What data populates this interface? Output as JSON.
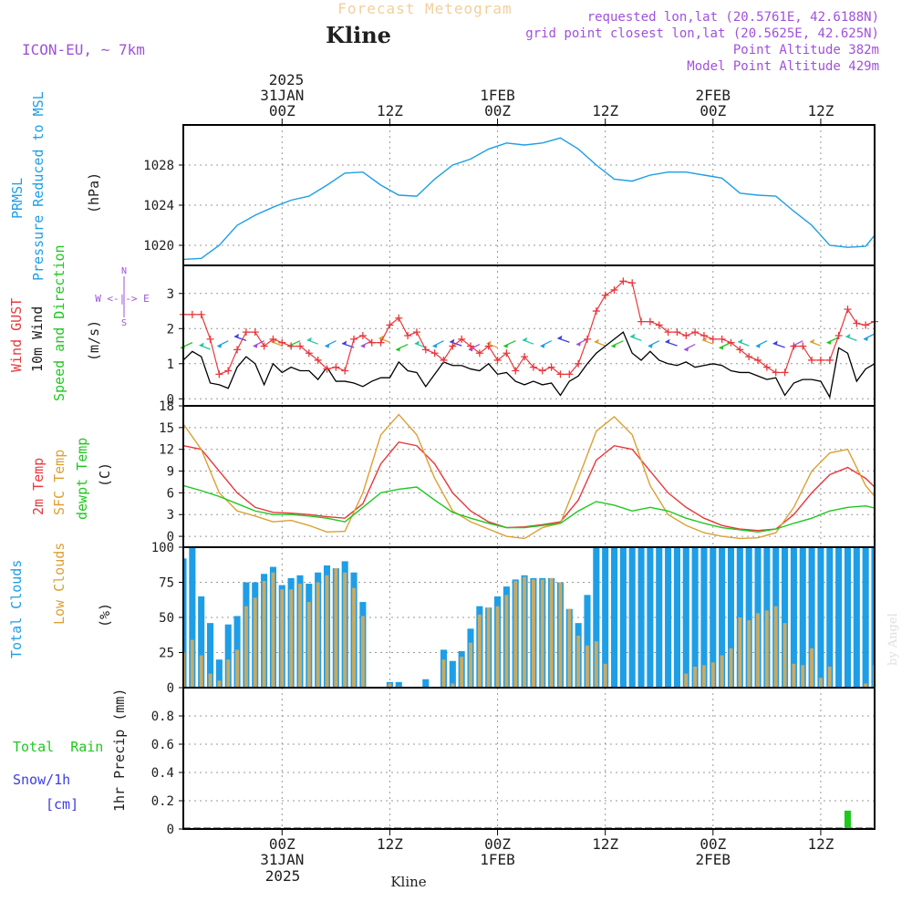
{
  "header": {
    "super_title": "Forecast Meteogram",
    "location": "Kline",
    "model": "ICON-EU, ~ 7km",
    "requested": "requested lon,lat (20.5761E, 42.6188N)",
    "grid_point": "grid point closest lon,lat (20.5625E, 42.625N)",
    "point_altitude": "Point Altitude 382m",
    "model_altitude": "Model Point Altitude 429m"
  },
  "footer": {
    "location": "Kline",
    "credit": "by Angel"
  },
  "time_axis": {
    "top_year": "2025",
    "top_labels": [
      {
        "day": "31JAN",
        "hour": "00Z",
        "h": 0
      },
      {
        "day": "",
        "hour": "12Z",
        "h": 12
      },
      {
        "day": "1FEB",
        "hour": "00Z",
        "h": 24
      },
      {
        "day": "",
        "hour": "12Z",
        "h": 36
      },
      {
        "day": "2FEB",
        "hour": "00Z",
        "h": 48
      },
      {
        "day": "",
        "hour": "12Z",
        "h": 60
      }
    ],
    "bottom_year": "2025",
    "bottom_labels": [
      {
        "hour": "00Z",
        "day": "31JAN",
        "h": 0
      },
      {
        "hour": "12Z",
        "day": "",
        "h": 12
      },
      {
        "hour": "00Z",
        "day": "1FEB",
        "h": 24
      },
      {
        "hour": "12Z",
        "day": "",
        "h": 36
      },
      {
        "hour": "00Z",
        "day": "2FEB",
        "h": 48
      },
      {
        "hour": "12Z",
        "day": "",
        "h": 60
      }
    ],
    "start_h": -11,
    "end_h": 66
  },
  "panel_labels": {
    "prmsl": {
      "line1": "PRMSL",
      "line2": "Pressure Reduced to MSL",
      "unit": "(hPa)"
    },
    "wind": {
      "gust": "Wind GUST",
      "wind10": "10m Wind",
      "speed_dir": "Speed and Direction",
      "unit": "(m/s)",
      "compass_n": "N",
      "compass_s": "S",
      "compass_we": "W <-|-> E"
    },
    "temp": {
      "t2m": "2m Temp",
      "sfc": "SFC Temp",
      "dewpt": "dewpt Temp",
      "unit": "(C)"
    },
    "clouds": {
      "total": "Total Clouds",
      "low": "Low Clouds",
      "unit": "(%)"
    },
    "precip": {
      "total_rain": "Total  Rain",
      "snow": "Snow/1h",
      "snow_unit": "[cm]",
      "axis": "1hr Precip (mm)"
    }
  },
  "colors": {
    "prmsl": "#1e9ee6",
    "gust": "#e8383c",
    "wind10": "#000000",
    "t2m": "#e8383c",
    "sfc": "#dca032",
    "dewpt": "#1ec81e",
    "total_clouds": "#1e9ee6",
    "low_clouds": "#c8aa64",
    "rain": "#1ec81e",
    "snow": "#3c3ce6",
    "purple": "#a050dc"
  },
  "chart_data": [
    {
      "type": "line",
      "name": "prmsl",
      "ylim": [
        1018,
        1032
      ],
      "yticks": [
        1020,
        1024,
        1028
      ],
      "x": [
        -11,
        -9,
        -7,
        -5,
        -3,
        -1,
        1,
        3,
        5,
        7,
        9,
        11,
        13,
        15,
        17,
        19,
        21,
        23,
        25,
        27,
        29,
        31,
        33,
        35,
        37,
        39,
        41,
        43,
        45,
        47,
        49,
        51,
        53,
        55,
        57,
        59,
        61,
        63,
        65,
        66
      ],
      "series": [
        {
          "values": [
            1018.6,
            1018.7,
            1020.0,
            1022.0,
            1023.0,
            1023.8,
            1024.5,
            1024.9,
            1026.0,
            1027.2,
            1027.3,
            1026.0,
            1025.0,
            1024.9,
            1026.6,
            1028.0,
            1028.6,
            1029.6,
            1030.2,
            1030.0,
            1030.2,
            1030.7,
            1029.6,
            1028.0,
            1026.6,
            1026.4,
            1027.0,
            1027.3,
            1027.3,
            1027.0,
            1026.7,
            1025.2,
            1025.0,
            1024.9,
            1023.4,
            1022.0,
            1020.0,
            1019.8,
            1019.9,
            1021.0
          ]
        }
      ]
    },
    {
      "type": "line",
      "name": "wind",
      "ylim": [
        -0.2,
        3.8
      ],
      "yticks": [
        0,
        1,
        2,
        3
      ],
      "gust_x": [
        -11,
        -10,
        -9,
        -8,
        -7,
        -6,
        -5,
        -4,
        -3,
        -2,
        -1,
        0,
        1,
        2,
        3,
        4,
        5,
        6,
        7,
        8,
        9,
        10,
        11,
        12,
        13,
        14,
        15,
        16,
        17,
        18,
        19,
        20,
        21,
        22,
        23,
        24,
        25,
        26,
        27,
        28,
        29,
        30,
        31,
        32,
        33,
        34,
        35,
        36,
        37,
        38,
        39,
        40,
        41,
        42,
        43,
        44,
        45,
        46,
        47,
        48,
        49,
        50,
        51,
        52,
        53,
        54,
        55,
        56,
        57,
        58,
        59,
        60,
        61,
        62,
        63,
        64,
        65,
        66
      ],
      "gust": [
        2.4,
        2.4,
        2.4,
        1.7,
        0.7,
        0.8,
        1.4,
        1.9,
        1.9,
        1.5,
        1.7,
        1.6,
        1.5,
        1.5,
        1.3,
        1.1,
        0.85,
        0.9,
        0.8,
        1.7,
        1.8,
        1.6,
        1.6,
        2.1,
        2.3,
        1.8,
        1.9,
        1.4,
        1.3,
        1.1,
        1.5,
        1.7,
        1.5,
        1.3,
        1.5,
        1.1,
        1.3,
        0.8,
        1.2,
        0.9,
        0.8,
        0.9,
        0.7,
        0.7,
        1.0,
        1.7,
        2.5,
        2.95,
        3.1,
        3.35,
        3.3,
        2.2,
        2.2,
        2.1,
        1.9,
        1.9,
        1.8,
        1.9,
        1.8,
        1.7,
        1.7,
        1.6,
        1.4,
        1.2,
        1.1,
        0.9,
        0.75,
        0.75,
        1.5,
        1.5,
        1.1,
        1.1,
        1.1,
        1.8,
        2.55,
        2.15,
        2.1,
        2.2
      ],
      "wind10_x": [
        -11,
        -10,
        -9,
        -8,
        -7,
        -6,
        -5,
        -4,
        -3,
        -2,
        -1,
        0,
        1,
        2,
        3,
        4,
        5,
        6,
        7,
        8,
        9,
        10,
        11,
        12,
        13,
        14,
        15,
        16,
        17,
        18,
        19,
        20,
        21,
        22,
        23,
        24,
        25,
        26,
        27,
        28,
        29,
        30,
        31,
        32,
        33,
        34,
        35,
        36,
        37,
        38,
        39,
        40,
        41,
        42,
        43,
        44,
        45,
        46,
        47,
        48,
        49,
        50,
        51,
        52,
        53,
        54,
        55,
        56,
        57,
        58,
        59,
        60,
        61,
        62,
        63,
        64,
        65,
        66
      ],
      "wind10": [
        1.1,
        1.35,
        1.2,
        0.45,
        0.4,
        0.3,
        0.9,
        1.2,
        1.0,
        0.4,
        1.0,
        0.75,
        0.9,
        0.8,
        0.8,
        0.55,
        0.9,
        0.5,
        0.5,
        0.45,
        0.35,
        0.5,
        0.6,
        0.6,
        1.05,
        0.8,
        0.75,
        0.35,
        0.7,
        1.05,
        0.95,
        0.95,
        0.85,
        0.8,
        1.0,
        0.7,
        0.75,
        0.5,
        0.4,
        0.5,
        0.4,
        0.45,
        0.1,
        0.5,
        0.65,
        1.0,
        1.3,
        1.5,
        1.7,
        1.9,
        1.3,
        1.1,
        1.35,
        1.1,
        1.0,
        0.95,
        1.05,
        0.9,
        0.95,
        1.0,
        0.95,
        0.8,
        0.75,
        0.75,
        0.65,
        0.55,
        0.6,
        0.1,
        0.45,
        0.55,
        0.55,
        0.5,
        0.05,
        1.45,
        1.3,
        0.5,
        0.85,
        1.0
      ],
      "barbs_x": [
        -10.5,
        -8.5,
        -6.5,
        -4.5,
        -2.5,
        -0.5,
        1.5,
        3.5,
        5.5,
        7.5,
        9.5,
        11.5,
        13.5,
        15.5,
        17.5,
        19.5,
        21.5,
        23.5,
        25.5,
        27.5,
        29.5,
        31.5,
        33.5,
        35.5,
        37.5,
        39.5,
        41.5,
        43.5,
        45.5,
        47.5,
        49.5,
        51.5,
        53.5,
        55.5,
        57.5,
        59.5,
        61.5,
        63.5,
        65.5
      ],
      "barbs_y": [
        1.55,
        1.45,
        1.6,
        1.7,
        1.6,
        1.55,
        1.6,
        1.6,
        1.6,
        1.5,
        1.6,
        1.65,
        1.5,
        1.5,
        1.6,
        1.55,
        1.5,
        1.5,
        1.6,
        1.6,
        1.6,
        1.65,
        1.65,
        1.55,
        1.6,
        1.7,
        1.6,
        1.55,
        1.5,
        1.6,
        1.55,
        1.55,
        1.6,
        1.5,
        1.6,
        1.55,
        1.7,
        1.7,
        1.8
      ]
    },
    {
      "type": "line",
      "name": "temperature",
      "ylim": [
        -1.5,
        18
      ],
      "yticks": [
        0,
        3,
        6,
        9,
        12,
        15,
        18
      ],
      "x": [
        -11,
        -9,
        -7,
        -5,
        -3,
        -1,
        1,
        3,
        5,
        7,
        9,
        11,
        13,
        15,
        17,
        19,
        21,
        23,
        25,
        27,
        29,
        31,
        33,
        35,
        37,
        39,
        41,
        43,
        45,
        47,
        49,
        51,
        53,
        55,
        57,
        59,
        61,
        63,
        65,
        66
      ],
      "series": [
        {
          "key": "t2m",
          "values": [
            12.5,
            12.0,
            9.0,
            6.0,
            4.0,
            3.3,
            3.2,
            3.0,
            2.7,
            2.5,
            4.5,
            10.0,
            13.0,
            12.5,
            10.0,
            6.0,
            3.5,
            2.0,
            1.2,
            1.3,
            1.6,
            2.0,
            5.0,
            10.5,
            12.5,
            12.0,
            9.0,
            6.0,
            4.0,
            2.5,
            1.5,
            1.0,
            0.8,
            1.0,
            3.0,
            6.0,
            8.5,
            9.5,
            8.0,
            6.8
          ]
        },
        {
          "key": "sfc",
          "values": [
            15.5,
            12.0,
            6.0,
            3.5,
            2.8,
            2.0,
            2.2,
            1.5,
            0.6,
            0.7,
            6.0,
            14.0,
            16.8,
            14.0,
            8.0,
            3.5,
            2.0,
            1.0,
            0.0,
            -0.3,
            1.2,
            1.8,
            8.0,
            14.5,
            16.5,
            14.0,
            7.0,
            3.0,
            1.5,
            0.5,
            0.0,
            -0.3,
            -0.2,
            0.5,
            4.0,
            9.0,
            11.5,
            12.0,
            7.0,
            5.5
          ]
        },
        {
          "key": "dewpt",
          "values": [
            7.0,
            6.3,
            5.5,
            4.5,
            3.5,
            3.0,
            3.0,
            2.8,
            2.5,
            2.0,
            4.0,
            6.0,
            6.5,
            6.8,
            5.0,
            3.3,
            2.5,
            1.8,
            1.2,
            1.2,
            1.5,
            1.8,
            3.5,
            4.8,
            4.3,
            3.5,
            4.0,
            3.5,
            2.5,
            1.8,
            1.2,
            0.9,
            0.6,
            1.0,
            1.8,
            2.5,
            3.5,
            4.0,
            4.2,
            3.9
          ]
        }
      ]
    },
    {
      "type": "bar",
      "name": "clouds",
      "ylim": [
        0,
        100
      ],
      "yticks": [
        0,
        25,
        50,
        75,
        100
      ],
      "x": [
        -11,
        -10,
        -9,
        -8,
        -7,
        -6,
        -5,
        -4,
        -3,
        -2,
        -1,
        0,
        1,
        2,
        3,
        4,
        5,
        6,
        7,
        8,
        9,
        10,
        11,
        12,
        13,
        14,
        15,
        16,
        17,
        18,
        19,
        20,
        21,
        22,
        23,
        24,
        25,
        26,
        27,
        28,
        29,
        30,
        31,
        32,
        33,
        34,
        35,
        36,
        37,
        38,
        39,
        40,
        41,
        42,
        43,
        44,
        45,
        46,
        47,
        48,
        49,
        50,
        51,
        52,
        53,
        54,
        55,
        56,
        57,
        58,
        59,
        60,
        61,
        62,
        63,
        64,
        65,
        66
      ],
      "series": [
        {
          "key": "total",
          "values": [
            92,
            100,
            65,
            46,
            20,
            45,
            51,
            75,
            75,
            81,
            86,
            73,
            78,
            80,
            74,
            82,
            87,
            85,
            90,
            82,
            61,
            0,
            0,
            4,
            4,
            0,
            0,
            6,
            0,
            27,
            19,
            26,
            42,
            58,
            57,
            65,
            72,
            77,
            80,
            78,
            78,
            78,
            75,
            56,
            46,
            66,
            100,
            100,
            100,
            100,
            100,
            100,
            100,
            100,
            100,
            100,
            100,
            100,
            100,
            100,
            100,
            100,
            100,
            100,
            100,
            100,
            100,
            100,
            100,
            100,
            100,
            100,
            100,
            100,
            100,
            100,
            100,
            100
          ]
        },
        {
          "key": "low",
          "values": [
            25,
            34,
            23,
            10,
            5,
            20,
            27,
            58,
            64,
            76,
            82,
            70,
            70,
            74,
            61,
            75,
            80,
            85,
            82,
            71,
            51,
            0,
            0,
            3,
            1,
            0,
            0,
            0,
            0,
            20,
            3,
            22,
            32,
            52,
            57,
            58,
            66,
            76,
            79,
            77,
            77,
            78,
            75,
            56,
            37,
            30,
            33,
            17,
            0,
            0,
            0,
            0,
            0,
            0,
            0,
            0,
            10,
            15,
            16,
            18,
            23,
            28,
            50,
            48,
            53,
            55,
            58,
            46,
            17,
            16,
            28,
            7,
            15,
            0,
            0,
            0,
            3,
            16
          ]
        }
      ]
    },
    {
      "type": "bar",
      "name": "precipitation",
      "ylim": [
        0,
        1.0
      ],
      "yticks": [
        0,
        0.2,
        0.4,
        0.6,
        0.8
      ],
      "x": [
        23,
        63
      ],
      "series": [
        {
          "key": "rain",
          "values": [
            0.005,
            0.13
          ]
        }
      ]
    }
  ]
}
